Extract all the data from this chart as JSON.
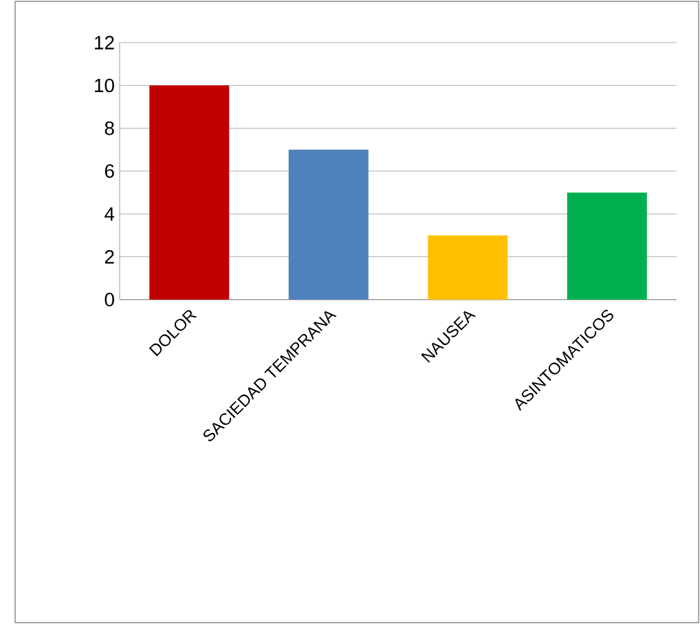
{
  "chart_data": {
    "type": "bar",
    "categories": [
      "DOLOR",
      "SACIEDAD TEMPRANA",
      "NAUSEA",
      "ASINTOMATICOS"
    ],
    "values": [
      10,
      7,
      3,
      5
    ],
    "colors": [
      "#c00000",
      "#4f81bd",
      "#ffc000",
      "#00b050"
    ],
    "ylim": [
      0,
      12
    ],
    "yticks": [
      0,
      2,
      4,
      6,
      8,
      10,
      12
    ],
    "grid": "y"
  }
}
